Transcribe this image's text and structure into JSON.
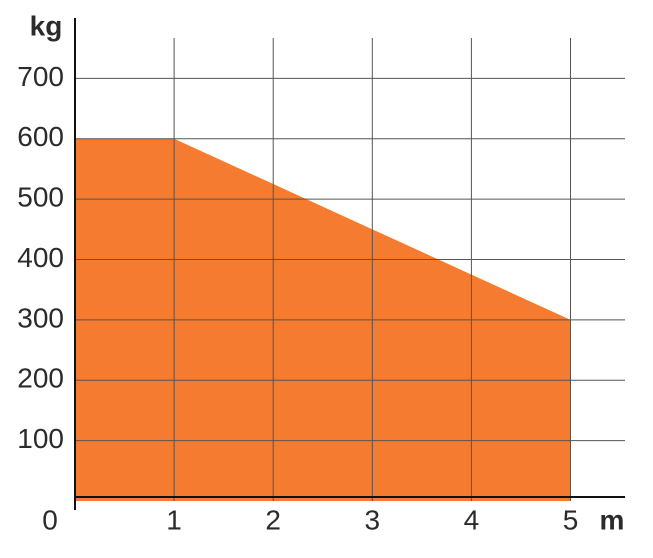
{
  "chart_data": {
    "type": "area",
    "y_label": "kg",
    "x_label": "m",
    "x": [
      0,
      1,
      2,
      3,
      4,
      5
    ],
    "values": [
      600,
      600,
      525,
      450,
      375,
      300
    ],
    "color": "#f47b2f",
    "xlim": [
      0,
      5.55
    ],
    "ylim": [
      0,
      800
    ],
    "xticks": [
      0,
      1,
      2,
      3,
      4,
      5
    ],
    "yticks": [
      100,
      200,
      300,
      400,
      500,
      600,
      700
    ],
    "grid": true
  }
}
